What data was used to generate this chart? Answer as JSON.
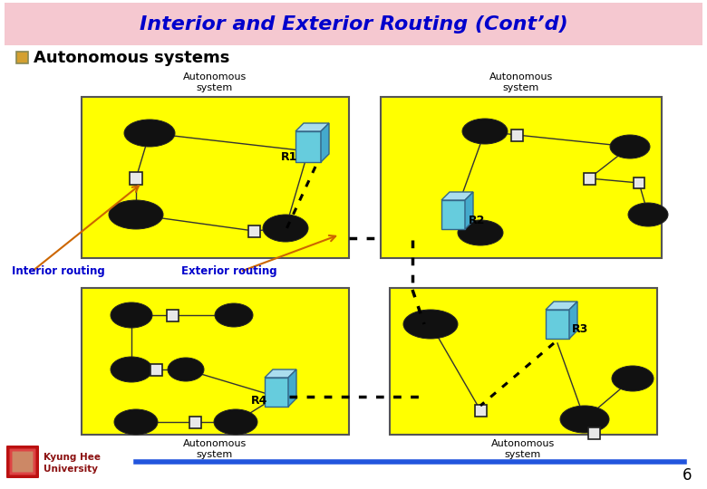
{
  "title": "Interior and Exterior Routing (Cont’d)",
  "title_bg": "#f5c8d0",
  "title_color": "#0000cc",
  "slide_bg": "#ffffff",
  "bullet_text": "Autonomous systems",
  "bullet_color": "#000000",
  "bullet_sq_fill": "#d4a030",
  "label_interior": "Interior routing",
  "label_exterior": "Exterior routing",
  "label_color": "#0000cc",
  "arrow_color": "#cc6600",
  "box_fill": "#ffff00",
  "router_front": "#66ccdd",
  "router_top": "#aaddee",
  "router_right": "#44aacc",
  "router_edge": "#336688",
  "node_color": "#111111",
  "small_router_fill": "#e8e8e8",
  "small_router_edge": "#222222",
  "line_color": "#333333",
  "dotted_color": "#000000",
  "as_label": "Autonomous\nsystem",
  "r1_label": "R1",
  "r2_label": "R2",
  "r3_label": "R3",
  "r4_label": "R4",
  "footer_line_color": "#2255dd",
  "footer_text_color": "#8b1010",
  "page_num": "6"
}
